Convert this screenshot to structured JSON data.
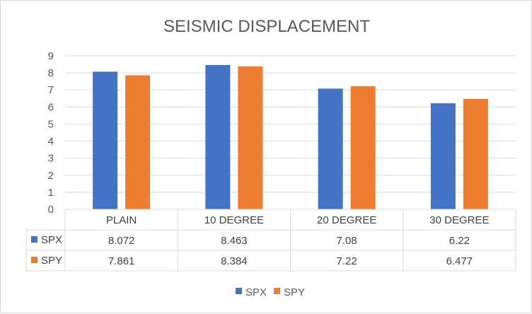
{
  "chart_data": {
    "type": "bar",
    "title": "SEISMIC DISPLACEMENT",
    "categories": [
      "PLAIN",
      "10 DEGREE",
      "20 DEGREE",
      "30 DEGREE"
    ],
    "series": [
      {
        "name": "SPX",
        "values": [
          8.072,
          8.463,
          7.08,
          6.22
        ],
        "labels": [
          "8.072",
          "8.463",
          "7.08",
          "6.22"
        ],
        "color": "#4472c4"
      },
      {
        "name": "SPY",
        "values": [
          7.861,
          8.384,
          7.22,
          6.477
        ],
        "labels": [
          "7.861",
          "8.384",
          "7.22",
          "6.477"
        ],
        "color": "#ed7d31"
      }
    ],
    "ylim": [
      0,
      9
    ],
    "yticks": [
      "0",
      "1",
      "2",
      "3",
      "4",
      "5",
      "6",
      "7",
      "8",
      "9"
    ],
    "grid": true,
    "data_table": true,
    "legend_position": "bottom",
    "xlabel": "",
    "ylabel": ""
  }
}
